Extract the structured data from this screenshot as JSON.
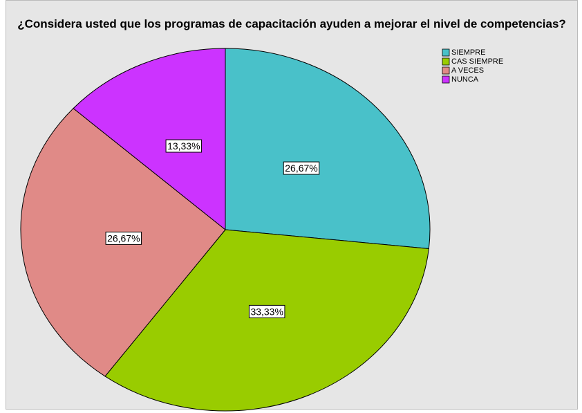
{
  "chart_data": {
    "type": "pie",
    "title": "¿Considera usted que los programas de capacitación ayuden a mejorar el nivel de competencias?",
    "categories": [
      "SIEMPRE",
      "CAS SIEMPRE",
      "A VECES",
      "NUNCA"
    ],
    "values": [
      26.67,
      33.33,
      26.67,
      13.33
    ],
    "value_labels": [
      "26,67%",
      "33,33%",
      "26,67%",
      "13,33%"
    ],
    "colors": [
      "#49c1c9",
      "#99cc00",
      "#e08a87",
      "#cc33ff"
    ],
    "legend": "top-right"
  }
}
